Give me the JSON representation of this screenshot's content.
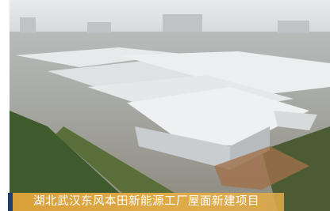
{
  "caption": "湖北武汉东风本田新能源工厂屋面新建项目"
}
